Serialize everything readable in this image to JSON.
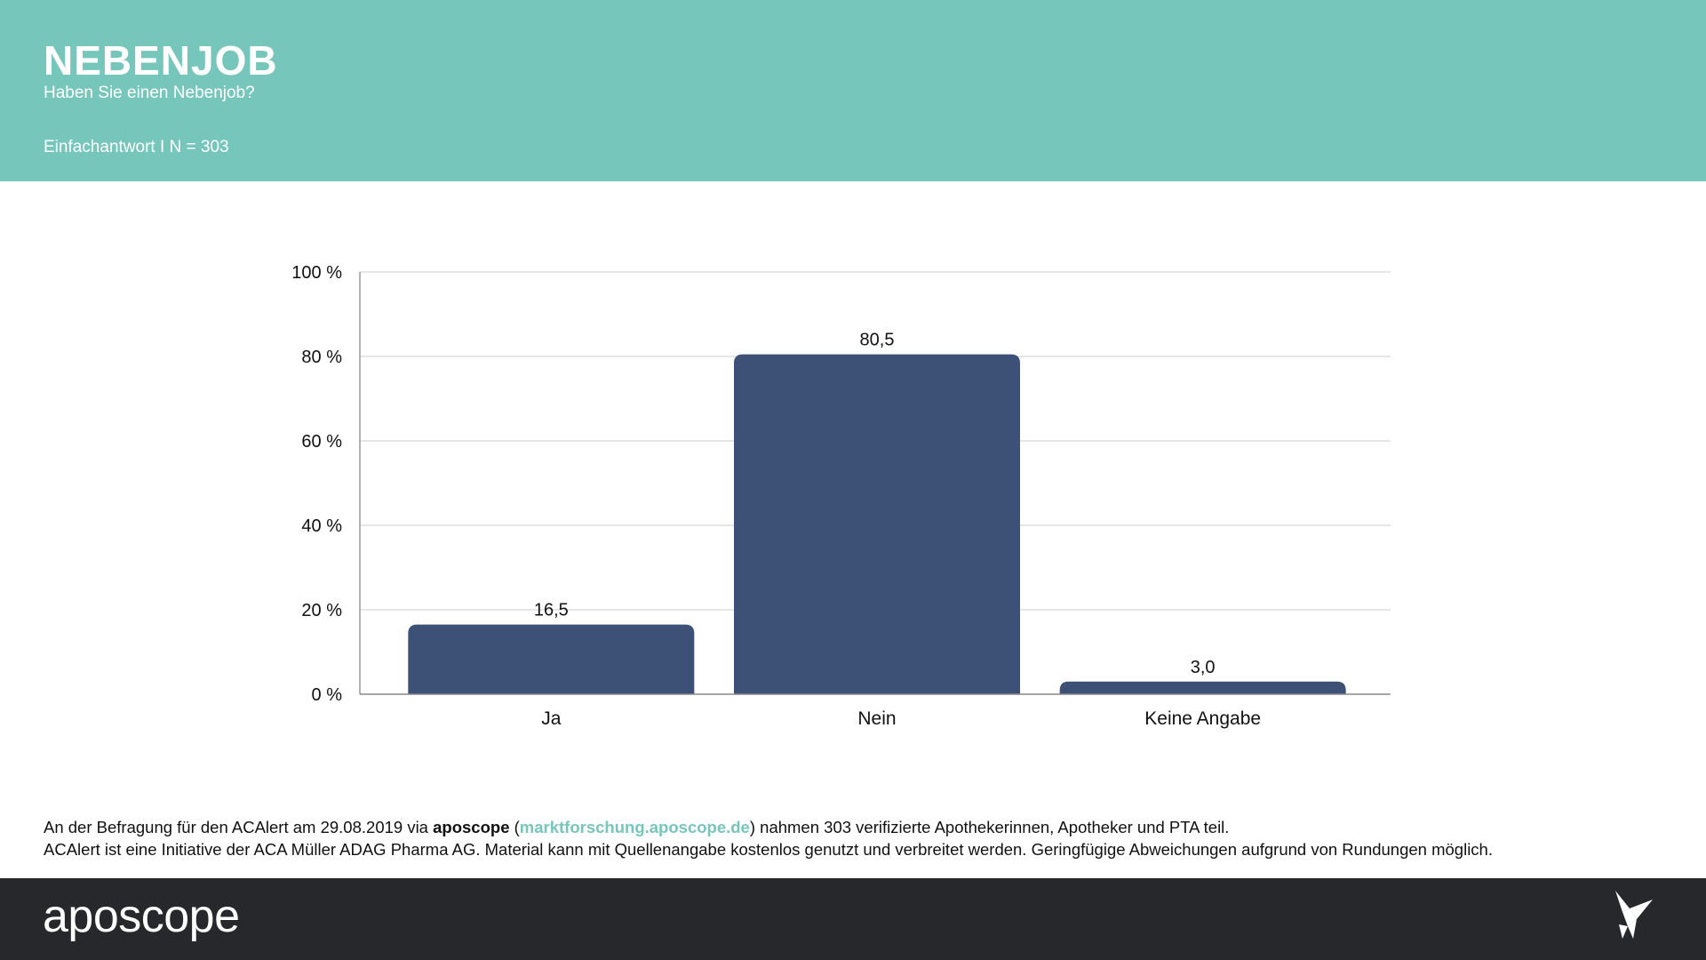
{
  "header": {
    "title": "NEBENJOB",
    "subtitle": "Haben Sie einen Nebenjob?",
    "meta": "Einfachantwort I N = 303"
  },
  "chart_data": {
    "type": "bar",
    "categories": [
      "Ja",
      "Nein",
      "Keine Angabe"
    ],
    "values": [
      16.5,
      80.5,
      3.0
    ],
    "data_labels": [
      "16,5",
      "80,5",
      "3,0"
    ],
    "ylim": [
      0,
      100
    ],
    "yticks": [
      {
        "value": 0,
        "label": "0 %"
      },
      {
        "value": 20,
        "label": "20 %"
      },
      {
        "value": 40,
        "label": "40 %"
      },
      {
        "value": 60,
        "label": "60 %"
      },
      {
        "value": 80,
        "label": "80 %"
      },
      {
        "value": 100,
        "label": "100 %"
      }
    ],
    "grid": true,
    "bar_color": "#3d5177"
  },
  "footnote": {
    "line1_pre": "An der Befragung für den ACAlert am 29.08.2019 via ",
    "line1_brand": "aposcope",
    "line1_open": " (",
    "line1_link": "marktforschung.aposcope.de",
    "line1_post": ") nahmen 303 verifizierte Apothekerinnen, Apotheker und PTA teil.",
    "line2": "ACAlert ist eine Initiative der ACA Müller ADAG Pharma AG. Material kann mit Quellenangabe kostenlos genutzt und verbreitet werden. Geringfügige Abweichungen aufgrund von Rundungen möglich."
  },
  "footer": {
    "logo": "aposcope",
    "icon": "paper-bird-icon"
  },
  "colors": {
    "header_bg": "#77c6bc",
    "footer_bg": "#27282c",
    "link": "#77c6bc"
  }
}
